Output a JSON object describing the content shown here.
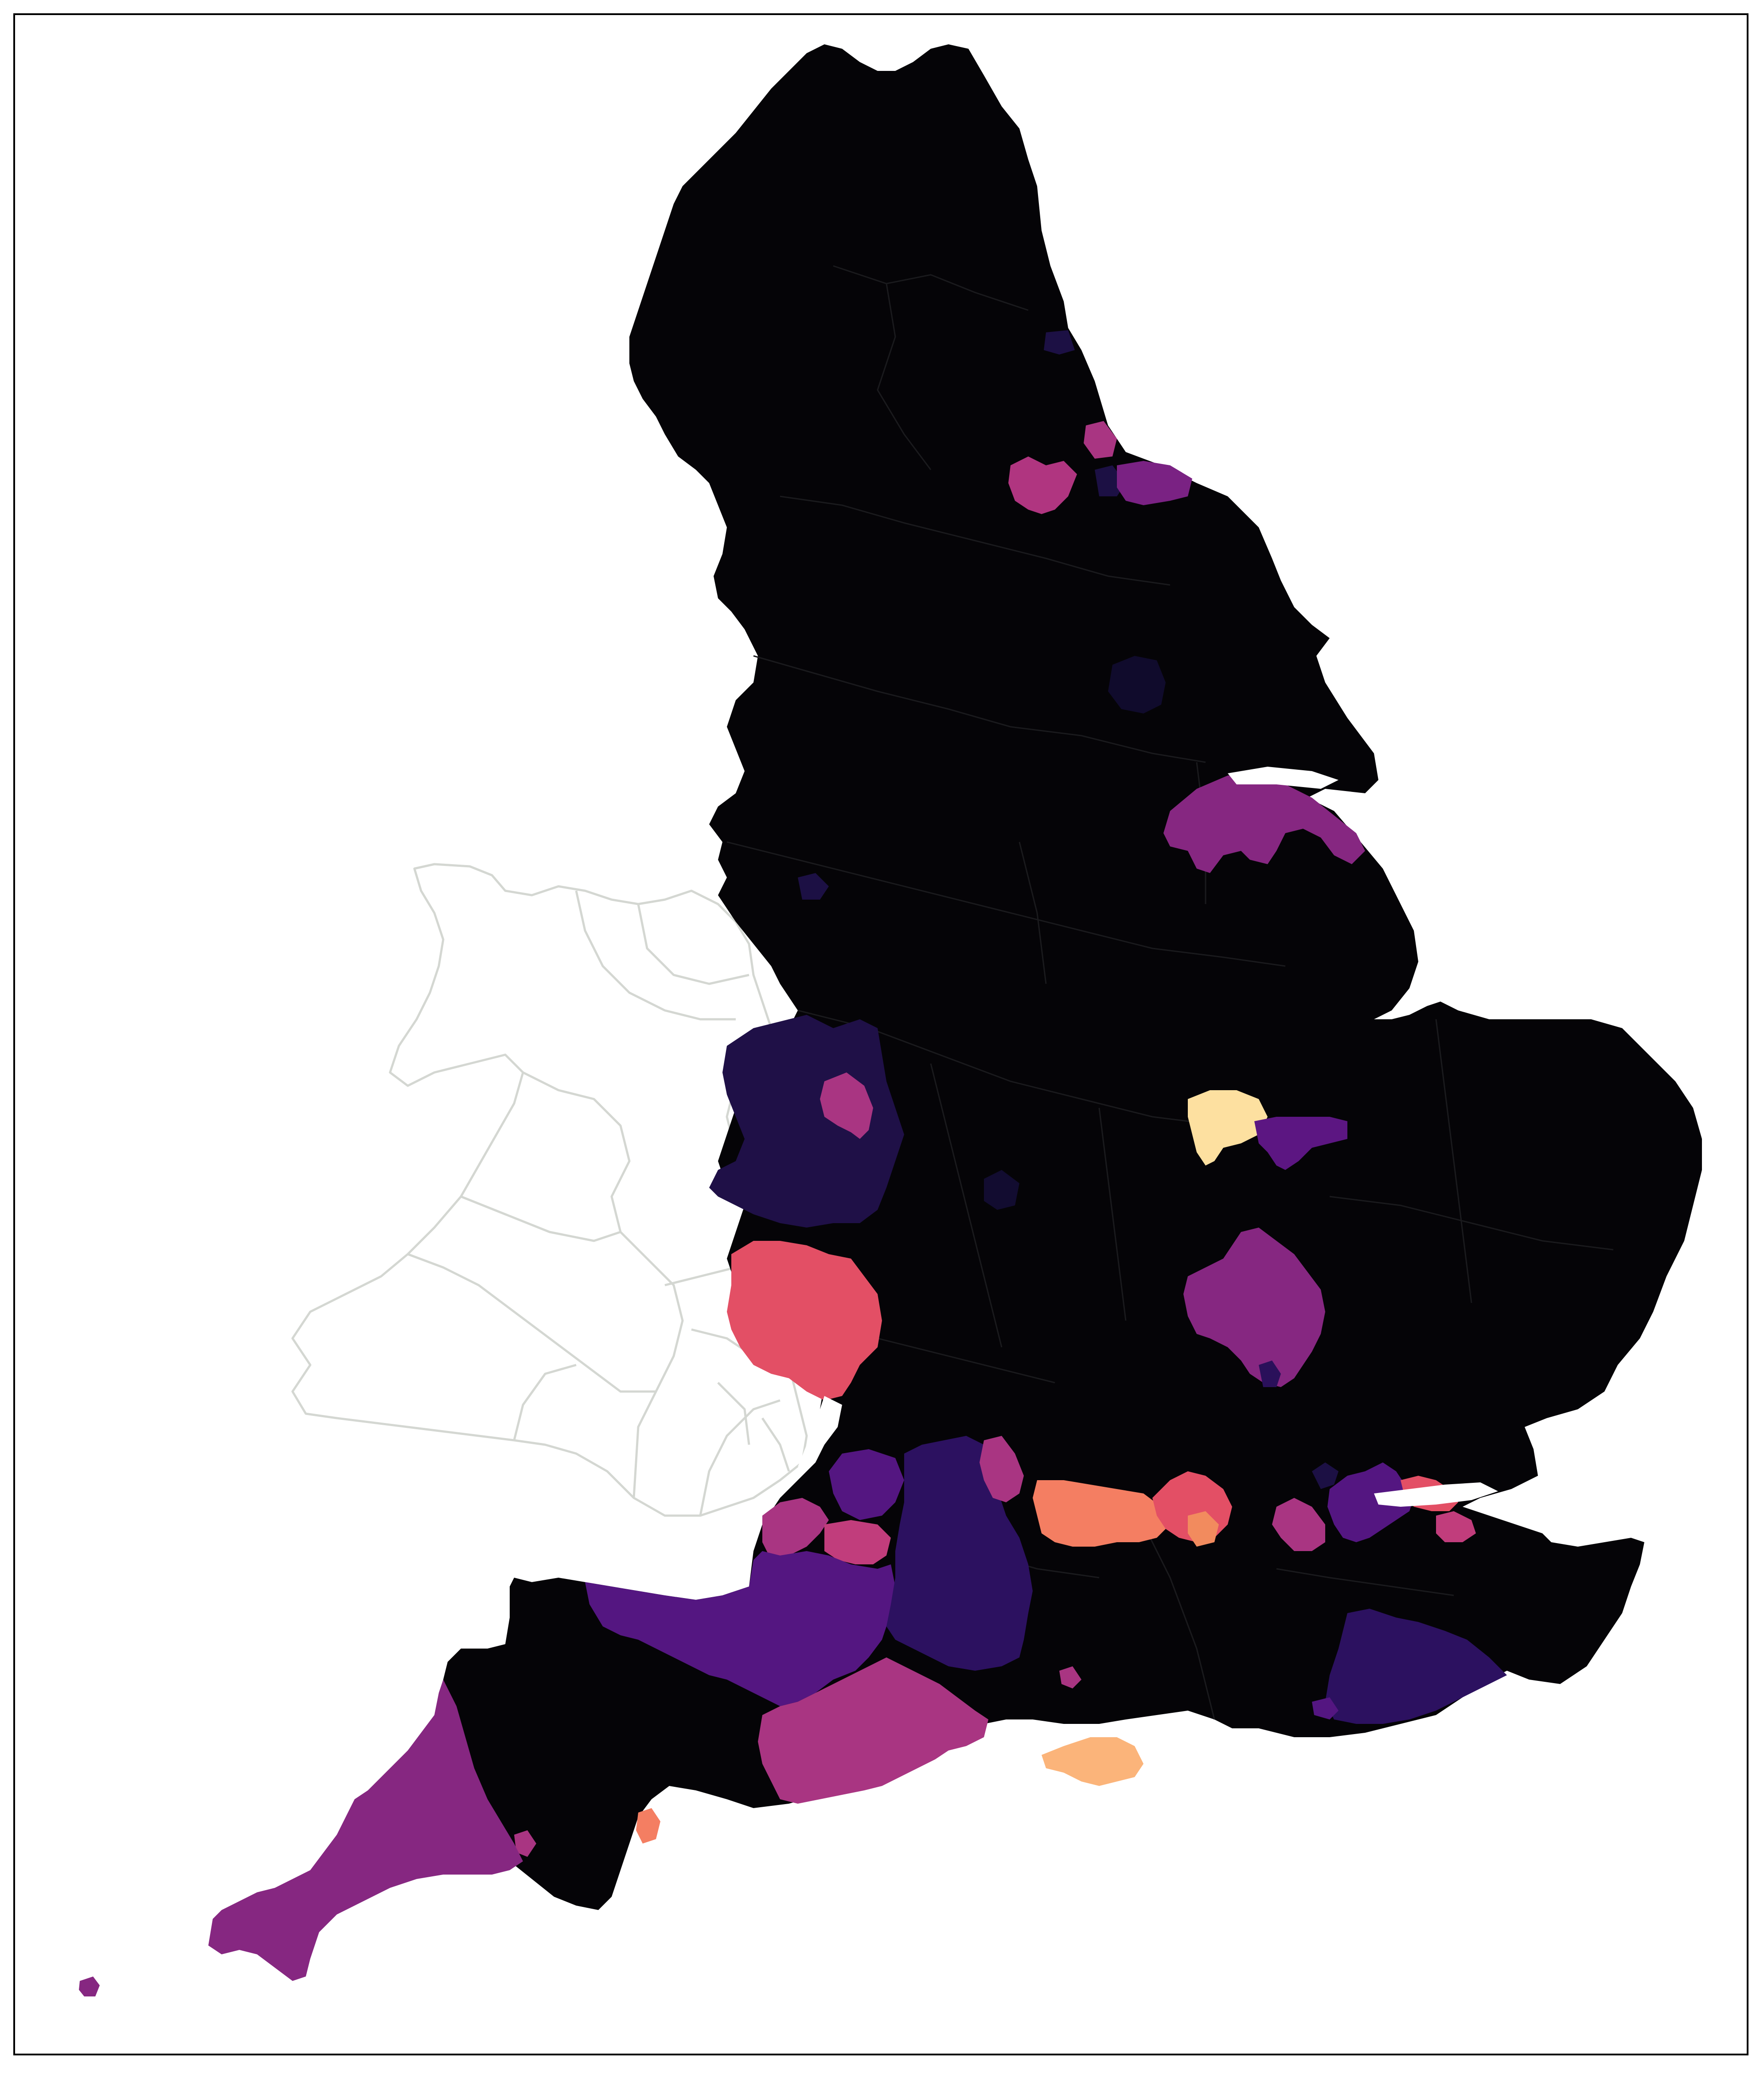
{
  "map": {
    "type": "choropleth",
    "country": "England",
    "colormap": "magma",
    "base_color": "#050407",
    "neighbour_outline_color": "#d4d7d2",
    "scale_colors": [
      "#050407",
      "#1c1044",
      "#2c1160",
      "#541681",
      "#862781",
      "#a93582",
      "#c13d7c",
      "#e34f65",
      "#f47e62",
      "#fbb47a",
      "#fde0a0"
    ],
    "regions": [
      {
        "id": "cumbria-north-east-england-base",
        "color": "#050407"
      },
      {
        "id": "northumberland-coast-strip",
        "color": "#1c1044"
      },
      {
        "id": "hartlepool",
        "color": "#a93582"
      },
      {
        "id": "stockton",
        "color": "#1c1044"
      },
      {
        "id": "darlington",
        "color": "#b03580"
      },
      {
        "id": "redcar-cleveland",
        "color": "#7a2283"
      },
      {
        "id": "york",
        "color": "#100b2c"
      },
      {
        "id": "north-lincolnshire",
        "color": "#862781"
      },
      {
        "id": "wirral-inset",
        "color": "#1c1044"
      },
      {
        "id": "shropshire",
        "color": "#1f1047"
      },
      {
        "id": "telford-wrekin",
        "color": "#a93582"
      },
      {
        "id": "herefordshire",
        "color": "#e34f65"
      },
      {
        "id": "rutland",
        "color": "#fde0a0"
      },
      {
        "id": "peterborough",
        "color": "#5c1682"
      },
      {
        "id": "milton-keynes-bedford",
        "color": "#862781"
      },
      {
        "id": "luton",
        "color": "#2a105a"
      },
      {
        "id": "birmingham-inset",
        "color": "#120c30"
      },
      {
        "id": "south-gloucestershire-bristol",
        "color": "#541681"
      },
      {
        "id": "north-somerset",
        "color": "#a93582"
      },
      {
        "id": "bath-ne-somerset",
        "color": "#c13d7c"
      },
      {
        "id": "somerset",
        "color": "#541681"
      },
      {
        "id": "wiltshire",
        "color": "#2c1160"
      },
      {
        "id": "swindon",
        "color": "#a93582"
      },
      {
        "id": "west-berkshire-reading",
        "color": "#f47e62"
      },
      {
        "id": "wokingham-bracknell",
        "color": "#e34f65"
      },
      {
        "id": "windsor-slough",
        "color": "#f28b5e"
      },
      {
        "id": "surrey-north",
        "color": "#a93582"
      },
      {
        "id": "london-boroughs",
        "color": "#541681"
      },
      {
        "id": "thurrock-southend",
        "color": "#e34f65"
      },
      {
        "id": "medway",
        "color": "#c13d7c"
      },
      {
        "id": "dorset-poole",
        "color": "#a93582"
      },
      {
        "id": "isle-of-wight",
        "color": "#fbb47a"
      },
      {
        "id": "portsmouth",
        "color": "#a93582"
      },
      {
        "id": "east-sussex",
        "color": "#2c1160"
      },
      {
        "id": "brighton",
        "color": "#541681"
      },
      {
        "id": "torbay",
        "color": "#f47e62"
      },
      {
        "id": "plymouth",
        "color": "#a93582"
      },
      {
        "id": "cornwall",
        "color": "#862781"
      },
      {
        "id": "isles-of-scilly",
        "color": "#862781"
      }
    ]
  }
}
